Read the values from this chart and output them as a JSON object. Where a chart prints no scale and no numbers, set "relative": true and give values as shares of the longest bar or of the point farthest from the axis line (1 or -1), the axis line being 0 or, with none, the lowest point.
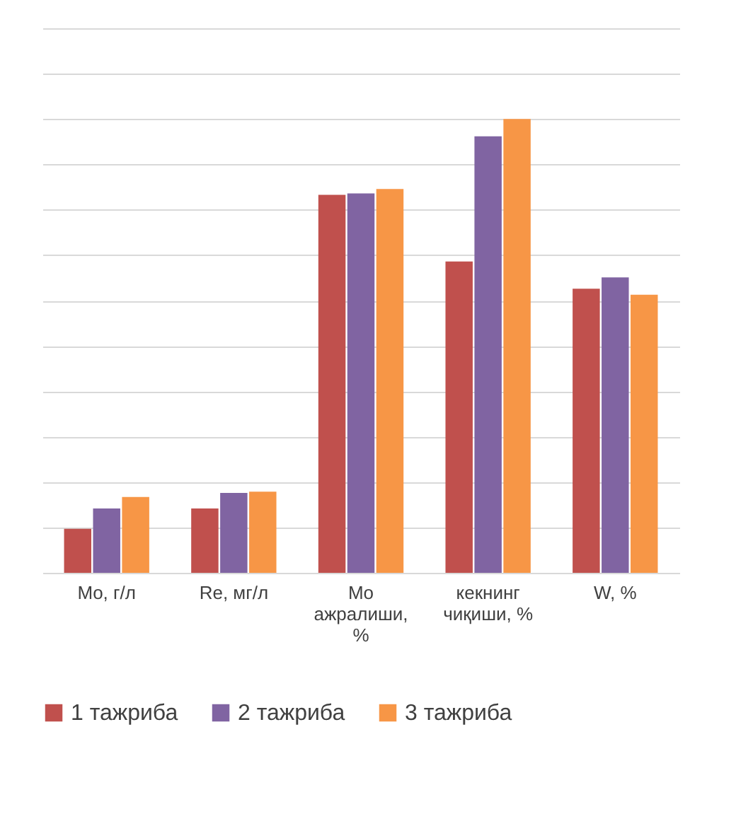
{
  "chart_data": {
    "type": "bar",
    "relative": true,
    "grid": "y",
    "legend": "bottom",
    "categories": [
      "Mo, г/л",
      "Re, мг/л",
      "Mo ажралиши, %",
      "кекнинг чиқиши, %",
      "W, %"
    ],
    "series": [
      {
        "name": "1 тажриба",
        "color": "#c0504d",
        "values": [
          0.097,
          0.142,
          0.833,
          0.686,
          0.626
        ]
      },
      {
        "name": "2 тажриба",
        "color": "#8064a2",
        "values": [
          0.142,
          0.176,
          0.836,
          0.962,
          0.651
        ]
      },
      {
        "name": "3 тажриба",
        "color": "#f79646",
        "values": [
          0.167,
          0.179,
          0.846,
          1,
          0.613
        ]
      }
    ]
  }
}
